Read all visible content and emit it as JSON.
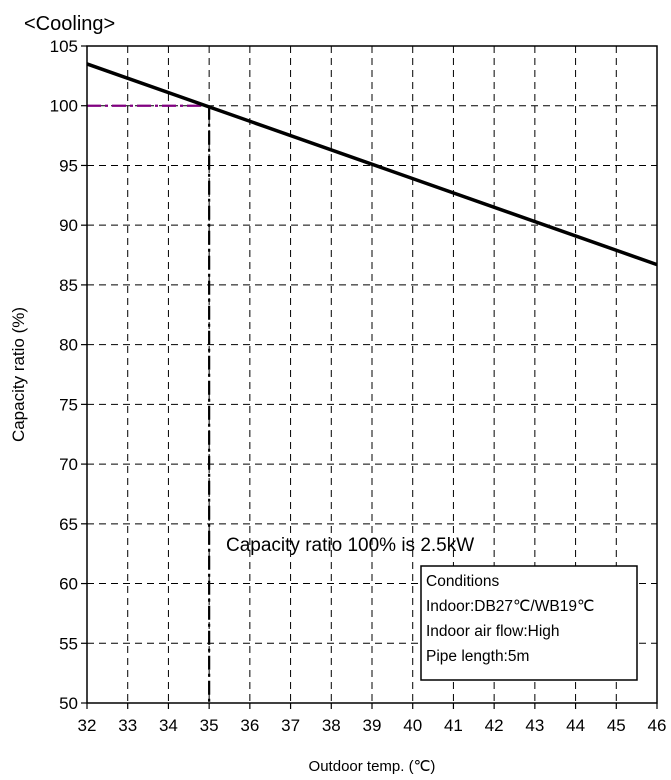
{
  "chart_data": {
    "type": "line",
    "title": "<Cooling>",
    "xlabel": "Outdoor temp. (℃)",
    "ylabel": "Capacity ratio (%)",
    "xlim": [
      32,
      46
    ],
    "ylim": [
      50,
      105
    ],
    "x_ticks": [
      "32",
      "33",
      "34",
      "35",
      "36",
      "37",
      "38",
      "39",
      "40",
      "41",
      "42",
      "43",
      "44",
      "45",
      "46"
    ],
    "y_ticks": [
      "50",
      "55",
      "60",
      "65",
      "70",
      "75",
      "80",
      "85",
      "90",
      "95",
      "100",
      "105"
    ],
    "grid": true,
    "series": [
      {
        "x": [
          32,
          46
        ],
        "y": [
          103.5,
          86.7
        ],
        "color": "#000000"
      }
    ],
    "reference": {
      "x": 35,
      "y": 100,
      "horizontal_color": "#800080",
      "vertical_color": "#000000"
    },
    "annotation": "Capacity ratio 100% is 2.5kW",
    "conditions": {
      "title": "Conditions",
      "lines": [
        "Indoor:DB27℃/WB19℃",
        "Indoor air flow:High",
        "Pipe length:5m"
      ]
    }
  }
}
